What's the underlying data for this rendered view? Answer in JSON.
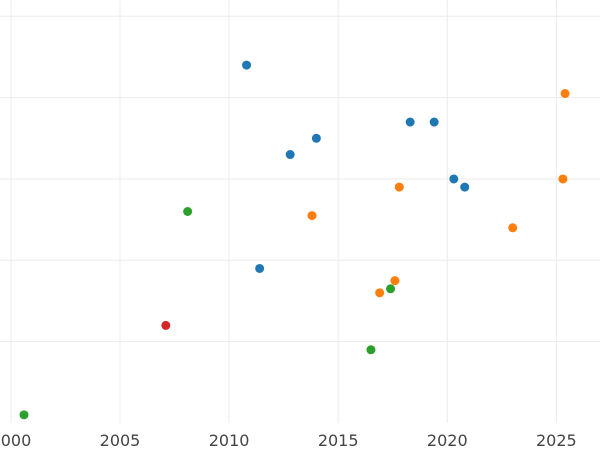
{
  "chart_data": {
    "type": "scatter",
    "title": "",
    "xlabel": "",
    "ylabel": "",
    "xlim": [
      1999.5,
      2027
    ],
    "ylim": [
      0,
      5.2
    ],
    "xticks": [
      2000,
      2005,
      2010,
      2015,
      2020,
      2025
    ],
    "xtick_labels": [
      "2000",
      "2005",
      "2010",
      "2015",
      "2020",
      "2025"
    ],
    "yticks": [
      1,
      2,
      3,
      4,
      5
    ],
    "grid": true,
    "legend": "none",
    "series": [
      {
        "color": "#1f77b4",
        "points": [
          {
            "x": 2010.8,
            "y": 4.4
          },
          {
            "x": 2011.4,
            "y": 1.9
          },
          {
            "x": 2012.8,
            "y": 3.3
          },
          {
            "x": 2014.0,
            "y": 3.5
          },
          {
            "x": 2018.3,
            "y": 3.7
          },
          {
            "x": 2019.4,
            "y": 3.7
          },
          {
            "x": 2020.3,
            "y": 3.0
          },
          {
            "x": 2020.8,
            "y": 2.9
          }
        ]
      },
      {
        "color": "#ff7f0e",
        "points": [
          {
            "x": 2013.8,
            "y": 2.55
          },
          {
            "x": 2016.9,
            "y": 1.6
          },
          {
            "x": 2017.6,
            "y": 1.75
          },
          {
            "x": 2017.8,
            "y": 2.9
          },
          {
            "x": 2023.0,
            "y": 2.4
          },
          {
            "x": 2025.3,
            "y": 3.0
          },
          {
            "x": 2025.4,
            "y": 4.05
          }
        ]
      },
      {
        "color": "#2ca02c",
        "points": [
          {
            "x": 2000.6,
            "y": 0.1
          },
          {
            "x": 2008.1,
            "y": 2.6
          },
          {
            "x": 2016.5,
            "y": 0.9
          },
          {
            "x": 2017.4,
            "y": 1.65
          }
        ]
      },
      {
        "color": "#d62728",
        "points": [
          {
            "x": 2007.1,
            "y": 1.2
          }
        ]
      }
    ]
  }
}
